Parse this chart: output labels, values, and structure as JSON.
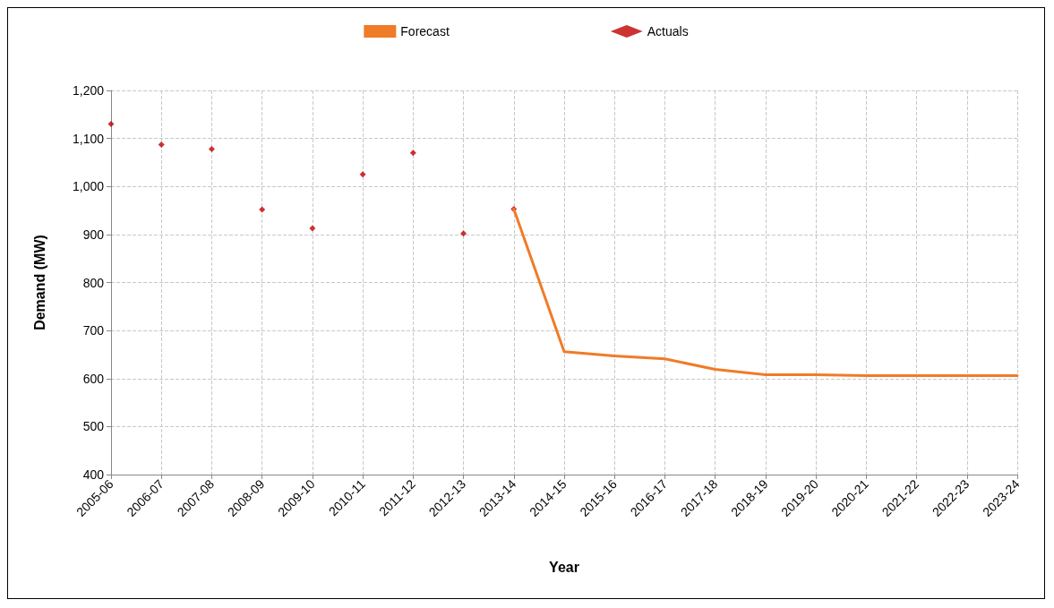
{
  "chart_data": {
    "type": "line",
    "xlabel": "Year",
    "ylabel": "Demand (MW)",
    "categories": [
      "2005-06",
      "2006-07",
      "2007-08",
      "2008-09",
      "2009-10",
      "2010-11",
      "2011-12",
      "2012-13",
      "2013-14",
      "2014-15",
      "2015-16",
      "2016-17",
      "2017-18",
      "2018-19",
      "2019-20",
      "2020-21",
      "2021-22",
      "2022-23",
      "2023-24"
    ],
    "series": [
      {
        "name": "Forecast",
        "color": "#f07b28",
        "marker": "none",
        "line_style": "solid",
        "values": [
          null,
          null,
          null,
          null,
          null,
          null,
          null,
          null,
          953,
          656,
          647,
          641,
          619,
          608,
          608,
          606,
          606,
          606,
          606
        ]
      },
      {
        "name": "Actuals",
        "type": "scatter",
        "color": "#c00000",
        "marker": "diamond",
        "values": [
          1130,
          1087,
          1078,
          952,
          913,
          1025,
          1070,
          902,
          953,
          null,
          null,
          null,
          null,
          null,
          null,
          null,
          null,
          null,
          null
        ]
      }
    ],
    "ylim": [
      400,
      1200
    ],
    "yticks": [
      400,
      500,
      600,
      700,
      800,
      900,
      {
        "value": 1000,
        "label": "1,000"
      },
      {
        "value": 1100,
        "label": "1,100"
      },
      {
        "value": 1200,
        "label": "1,200"
      }
    ],
    "grid": true,
    "legend": "top"
  }
}
